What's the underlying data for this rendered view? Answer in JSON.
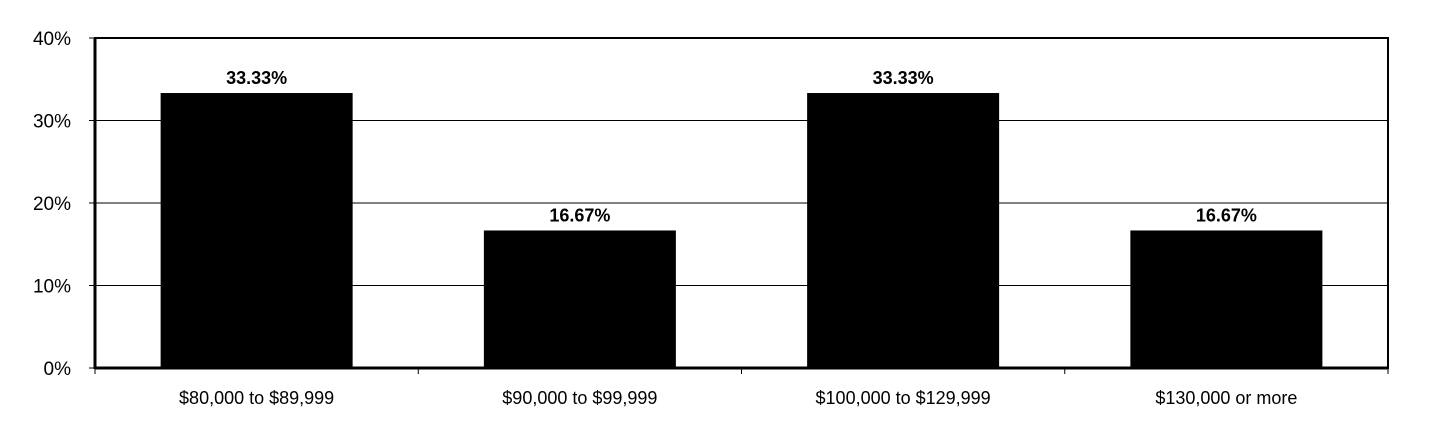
{
  "chart_data": {
    "type": "bar",
    "title": "",
    "xlabel": "",
    "ylabel": "",
    "categories": [
      "$80,000 to $89,999",
      "$90,000 to $99,999",
      "$100,000 to $129,999",
      "$130,000 or more"
    ],
    "values": [
      33.33,
      16.67,
      33.33,
      16.67
    ],
    "data_labels": [
      "33.33%",
      "16.67%",
      "33.33%",
      "16.67%"
    ],
    "ylim": [
      0,
      40
    ],
    "yticks": [
      0,
      10,
      20,
      30,
      40
    ],
    "ytick_labels": [
      "0%",
      "10%",
      "20%",
      "30%",
      "40%"
    ],
    "grid": "horizontal",
    "legend": "none",
    "bar_color": "#000000"
  }
}
